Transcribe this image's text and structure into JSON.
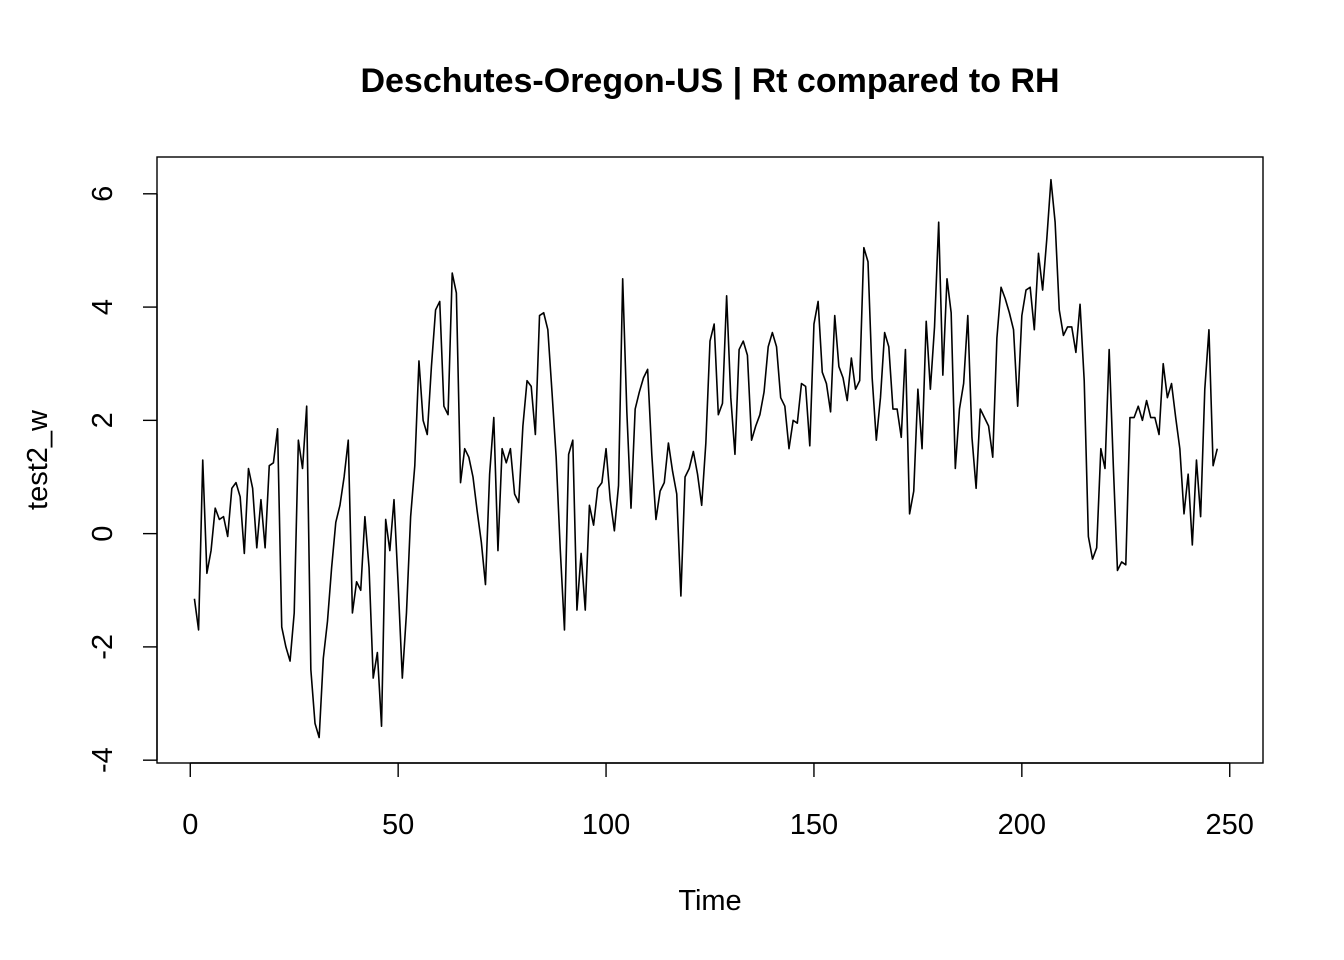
{
  "chart_data": {
    "type": "line",
    "title": "Deschutes-Oregon-US | Rt compared to RH",
    "xlabel": "Time",
    "ylabel": "test2_w",
    "xlim": [
      -8,
      258
    ],
    "ylim": [
      -4.05,
      6.65
    ],
    "x_ticks": [
      0,
      50,
      100,
      150,
      200,
      250
    ],
    "y_ticks": [
      -4,
      -2,
      0,
      2,
      4,
      6
    ],
    "grid": false,
    "legend": "none",
    "line_color": "#000000",
    "series": [
      {
        "x_start": 1,
        "x_step": 1,
        "values": [
          -1.15,
          -1.7,
          1.3,
          -0.7,
          -0.3,
          0.45,
          0.25,
          0.3,
          -0.05,
          0.8,
          0.9,
          0.65,
          -0.35,
          1.15,
          0.8,
          -0.25,
          0.6,
          -0.25,
          1.2,
          1.25,
          1.85,
          -1.65,
          -2.0,
          -2.25,
          -1.4,
          1.65,
          1.15,
          2.25,
          -2.4,
          -3.35,
          -3.6,
          -2.2,
          -1.55,
          -0.6,
          0.2,
          0.5,
          1.0,
          1.65,
          -1.4,
          -0.85,
          -1.0,
          0.3,
          -0.6,
          -2.55,
          -2.1,
          -3.4,
          0.25,
          -0.3,
          0.6,
          -0.9,
          -2.55,
          -1.4,
          0.3,
          1.2,
          3.05,
          2.0,
          1.75,
          2.95,
          3.95,
          4.1,
          2.25,
          2.1,
          4.6,
          4.25,
          0.9,
          1.5,
          1.35,
          1.0,
          0.4,
          -0.15,
          -0.9,
          1.05,
          2.05,
          -0.3,
          1.5,
          1.25,
          1.5,
          0.7,
          0.55,
          1.9,
          2.7,
          2.6,
          1.75,
          3.85,
          3.9,
          3.6,
          2.5,
          1.35,
          -0.3,
          -1.7,
          1.4,
          1.65,
          -1.35,
          -0.35,
          -1.35,
          0.5,
          0.15,
          0.8,
          0.9,
          1.5,
          0.6,
          0.05,
          0.85,
          4.5,
          2.15,
          0.45,
          2.2,
          2.5,
          2.75,
          2.9,
          1.4,
          0.25,
          0.75,
          0.9,
          1.6,
          1.1,
          0.7,
          -1.1,
          1.0,
          1.15,
          1.45,
          1.05,
          0.5,
          1.6,
          3.4,
          3.7,
          2.1,
          2.3,
          4.2,
          2.4,
          1.4,
          3.25,
          3.4,
          3.15,
          1.65,
          1.9,
          2.1,
          2.5,
          3.3,
          3.55,
          3.3,
          2.4,
          2.25,
          1.5,
          2.0,
          1.95,
          2.65,
          2.6,
          1.55,
          3.7,
          4.1,
          2.85,
          2.65,
          2.15,
          3.85,
          2.95,
          2.75,
          2.35,
          3.1,
          2.55,
          2.7,
          5.05,
          4.8,
          2.75,
          1.65,
          2.4,
          3.55,
          3.3,
          2.2,
          2.2,
          1.7,
          3.25,
          0.35,
          0.75,
          2.55,
          1.5,
          3.75,
          2.55,
          3.65,
          5.5,
          2.8,
          4.5,
          3.9,
          1.15,
          2.2,
          2.65,
          3.85,
          1.7,
          0.8,
          2.2,
          2.05,
          1.9,
          1.35,
          3.45,
          4.35,
          4.15,
          3.9,
          3.6,
          2.25,
          3.85,
          4.3,
          4.35,
          3.6,
          4.95,
          4.3,
          5.2,
          6.25,
          5.5,
          3.95,
          3.5,
          3.65,
          3.65,
          3.2,
          4.05,
          2.7,
          -0.05,
          -0.45,
          -0.25,
          1.5,
          1.15,
          3.25,
          1.2,
          -0.65,
          -0.5,
          -0.55,
          2.05,
          2.05,
          2.25,
          2.0,
          2.35,
          2.05,
          2.05,
          1.75,
          3.0,
          2.4,
          2.65,
          2.05,
          1.5,
          0.35,
          1.05,
          -0.2,
          1.3,
          0.3,
          2.55,
          3.6,
          1.2,
          1.5
        ]
      }
    ]
  }
}
